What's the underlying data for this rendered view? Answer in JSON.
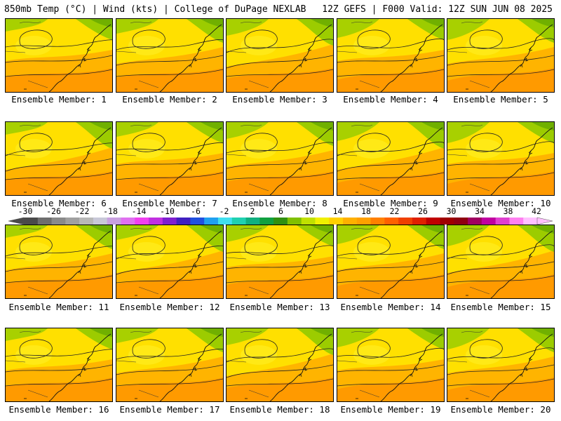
{
  "header": {
    "title_left": "850mb Temp (°C) | Wind (kts) | College of DuPage NEXLAB",
    "title_right": "12Z GEFS | F000 Valid: 12Z SUN JUN 08 2025"
  },
  "members": [
    "Ensemble Member: 1",
    "Ensemble Member: 2",
    "Ensemble Member: 3",
    "Ensemble Member: 4",
    "Ensemble Member: 5",
    "Ensemble Member: 6",
    "Ensemble Member: 7",
    "Ensemble Member: 8",
    "Ensemble Member: 9",
    "Ensemble Member: 10",
    "Ensemble Member: 11",
    "Ensemble Member: 12",
    "Ensemble Member: 13",
    "Ensemble Member: 14",
    "Ensemble Member: 15",
    "Ensemble Member: 16",
    "Ensemble Member: 17",
    "Ensemble Member: 18",
    "Ensemble Member: 19",
    "Ensemble Member: 20"
  ],
  "colorbar": {
    "labels": [
      "-30",
      "-26",
      "-22",
      "-18",
      "-14",
      "-10",
      "-6",
      "-2",
      "2",
      "6",
      "10",
      "14",
      "18",
      "22",
      "26",
      "30",
      "34",
      "38",
      "42"
    ],
    "colors": [
      "#4a4a4a",
      "#6e6e6e",
      "#8a8a8a",
      "#a0a0a0",
      "#b8b8b8",
      "#c8c8d8",
      "#c8a0e0",
      "#e070f0",
      "#f040f0",
      "#c030e0",
      "#8020d0",
      "#4020c0",
      "#2050e0",
      "#20a0f0",
      "#40e0f0",
      "#20d0b0",
      "#10b080",
      "#10a040",
      "#309010",
      "#80c000",
      "#c0e000",
      "#f0f000",
      "#ffd000",
      "#ffb000",
      "#ffa000",
      "#ff8000",
      "#ff6000",
      "#f04000",
      "#e02000",
      "#c00000",
      "#a00000",
      "#900010",
      "#a00060",
      "#c000a0",
      "#e040d0",
      "#ff80f0",
      "#ffc0ff"
    ]
  }
}
